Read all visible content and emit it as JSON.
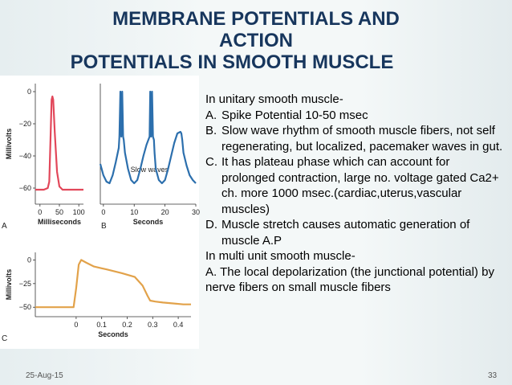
{
  "slide": {
    "title_lines": [
      "MEMBRANE POTENTIALS AND",
      "ACTION",
      "POTENTIALS IN SMOOTH MUSCLE"
    ],
    "footer_date": "25-Aug-15",
    "page_number": "33"
  },
  "body": {
    "intro": "In unitary smooth muscle-",
    "items": [
      {
        "marker": "A.",
        "text": "Spike Potential 10-50 msec"
      },
      {
        "marker": "B.",
        "text": "Slow wave rhythm of smooth muscle fibers, not self regenerating, but localized, pacemaker waves in gut."
      },
      {
        "marker": "C.",
        "text": "It has plateau phase which can account for prolonged contraction, large no. voltage gated Ca2+ ch. more 1000 msec.(cardiac,uterus,vascular muscles)"
      },
      {
        "marker": "D.",
        "text": "Muscle stretch causes automatic generation of muscle A.P"
      }
    ],
    "multi_heading": "In multi unit smooth muscle-",
    "multi_text": "A.  The local depolarization (the junctional potential) by nerve fibers on small muscle fibers"
  },
  "chart_data": [
    {
      "type": "line",
      "panel_label": "A",
      "ylabel": "Millivolts",
      "xlabel": "Milliseconds",
      "yticks": [
        "0",
        "−20",
        "−40",
        "−60"
      ],
      "xticks": [
        "0",
        "50",
        "100"
      ],
      "ylim": [
        -70,
        5
      ],
      "xlim": [
        -12,
        112
      ],
      "color": "#e2475a",
      "series": [
        {
          "x": [
            -12,
            10,
            20,
            24,
            27,
            30,
            32,
            34,
            38,
            44,
            50,
            58,
            70,
            90,
            112
          ],
          "y": [
            -61,
            -61,
            -60,
            -56,
            -30,
            -5,
            -3,
            -5,
            -25,
            -50,
            -59,
            -61,
            -61,
            -61,
            -61
          ]
        }
      ]
    },
    {
      "type": "line",
      "panel_label": "B",
      "xlabel": "Seconds",
      "yticks": [],
      "xticks": [
        "0",
        "10",
        "20",
        "30"
      ],
      "xlim": [
        -1,
        30
      ],
      "ylim": [
        -70,
        5
      ],
      "annotation": "Slow waves",
      "color": "#2c6fad",
      "series": [
        {
          "x": [
            -1,
            0,
            1,
            2,
            3,
            4,
            5,
            5.2,
            5.5,
            5.8,
            6.1,
            6.4,
            6.6,
            7,
            8,
            9,
            10,
            11,
            12,
            13,
            14,
            15,
            15.2,
            15.5,
            15.8,
            16.1,
            16.4,
            16.6,
            17,
            18,
            19,
            20,
            21,
            22,
            23,
            24,
            25,
            25.3,
            25.6,
            26,
            27,
            28,
            29,
            30
          ],
          "y": [
            -45,
            -52,
            -56,
            -57,
            -52,
            -44,
            -35,
            -28,
            0,
            -28,
            0,
            -28,
            -30,
            -38,
            -48,
            -55,
            -57,
            -55,
            -48,
            -40,
            -33,
            -28,
            0,
            -28,
            0,
            -28,
            -30,
            -38,
            -48,
            -55,
            -57,
            -55,
            -48,
            -40,
            -32,
            -26,
            -25,
            -26,
            -30,
            -38,
            -46,
            -52,
            -55,
            -57
          ]
        }
      ]
    },
    {
      "type": "line",
      "panel_label": "C",
      "ylabel": "Millivolts",
      "xlabel": "Seconds",
      "yticks": [
        "0",
        "−25",
        "−50"
      ],
      "xticks": [
        "0",
        "0.1",
        "0.2",
        "0.3",
        "0.4"
      ],
      "ylim": [
        -60,
        8
      ],
      "xlim": [
        -0.16,
        0.45
      ],
      "color": "#e2a24a",
      "series": [
        {
          "x": [
            -0.16,
            -0.01,
            0.0,
            0.01,
            0.02,
            0.04,
            0.07,
            0.12,
            0.18,
            0.23,
            0.26,
            0.28,
            0.29,
            0.31,
            0.34,
            0.38,
            0.42,
            0.45
          ],
          "y": [
            -50,
            -50,
            -30,
            -5,
            0,
            -3,
            -7,
            -10,
            -14,
            -18,
            -27,
            -38,
            -43,
            -44,
            -45,
            -46,
            -47,
            -47
          ]
        }
      ]
    }
  ]
}
